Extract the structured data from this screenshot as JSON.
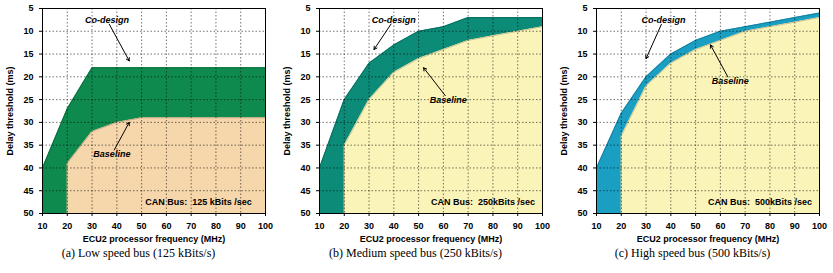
{
  "chart_data": [
    {
      "type": "area",
      "caption": "(a) Low speed bus (125 kBits/s)",
      "x_label": "ECU2 processor frequency (MHz)",
      "y_label": "Delay threshold (ms)",
      "x": [
        10,
        20,
        20,
        30,
        40,
        50,
        60,
        70,
        80,
        90,
        100
      ],
      "series": [
        {
          "name": "Co-design",
          "color": "#0e8a4e",
          "values": [
            40,
            27,
            27,
            18,
            18,
            18,
            18,
            18,
            18,
            18,
            18
          ]
        },
        {
          "name": "Baseline",
          "color": "#f6d6ab",
          "values": [
            50,
            50,
            39,
            32,
            30,
            29,
            29,
            29,
            29,
            29,
            29
          ]
        }
      ],
      "xlim": [
        10,
        100
      ],
      "xticks": [
        10,
        20,
        30,
        40,
        50,
        60,
        70,
        80,
        90,
        100
      ],
      "ylim": [
        50,
        5
      ],
      "yticks": [
        5,
        10,
        15,
        20,
        25,
        30,
        35,
        40,
        45,
        50
      ],
      "grid": true,
      "annotations": [
        {
          "text": "Co-design",
          "x": 36,
          "y": 7.5,
          "target": [
            45,
            16.5
          ]
        },
        {
          "text": "Baseline",
          "x": 38,
          "y": 37,
          "target": [
            45,
            30
          ]
        },
        {
          "text": "CAN Bus:  125 kBits /sec",
          "x": 73,
          "y": 47.5
        }
      ]
    },
    {
      "type": "area",
      "caption": "(b) Medium speed bus (250 kBits/s)",
      "x_label": "ECU2 processor frequency (MHz)",
      "y_label": "Delay threshold (ms)",
      "x": [
        10,
        20,
        20,
        30,
        40,
        50,
        60,
        70,
        80,
        90,
        100
      ],
      "series": [
        {
          "name": "Co-design",
          "color": "#0b8b78",
          "values": [
            40,
            25,
            25,
            17,
            13,
            10,
            9,
            7,
            7,
            7,
            7
          ]
        },
        {
          "name": "Baseline",
          "color": "#fbf4b8",
          "values": [
            50,
            50,
            35,
            25,
            19,
            16,
            14,
            12,
            11,
            10,
            9
          ]
        }
      ],
      "xlim": [
        10,
        100
      ],
      "xticks": [
        10,
        20,
        30,
        40,
        50,
        60,
        70,
        80,
        90,
        100
      ],
      "ylim": [
        50,
        5
      ],
      "yticks": [
        5,
        10,
        15,
        20,
        25,
        30,
        35,
        40,
        45,
        50
      ],
      "grid": true,
      "annotations": [
        {
          "text": "Co-design",
          "x": 40,
          "y": 7.5,
          "target": [
            32,
            14
          ]
        },
        {
          "text": "Baseline",
          "x": 62,
          "y": 25,
          "target": [
            52,
            18
          ]
        },
        {
          "text": "CAN Bus:  250kBits /sec",
          "x": 76,
          "y": 47.5
        }
      ]
    },
    {
      "type": "area",
      "caption": "(c) High speed bus (500 kBits/s)",
      "x_label": "ECU2 processor frequency (MHz)",
      "y_label": "Delay threshold (ms)",
      "x": [
        10,
        20,
        20,
        30,
        40,
        50,
        60,
        70,
        80,
        90,
        100
      ],
      "series": [
        {
          "name": "Co-design",
          "color": "#1a9fc2",
          "values": [
            40,
            28,
            28,
            20,
            15,
            12,
            10,
            9,
            8,
            7,
            6
          ]
        },
        {
          "name": "Baseline",
          "color": "#fbf4b8",
          "values": [
            50,
            50,
            33,
            22,
            17,
            14,
            12,
            10,
            9,
            8,
            7
          ]
        }
      ],
      "xlim": [
        10,
        100
      ],
      "xticks": [
        10,
        20,
        30,
        40,
        50,
        60,
        70,
        80,
        90,
        100
      ],
      "ylim": [
        50,
        5
      ],
      "yticks": [
        5,
        10,
        15,
        20,
        25,
        30,
        35,
        40,
        45,
        50
      ],
      "grid": true,
      "annotations": [
        {
          "text": "Co-design",
          "x": 37,
          "y": 7.5,
          "target": [
            30,
            16
          ]
        },
        {
          "text": "Baseline",
          "x": 64,
          "y": 21,
          "target": [
            56,
            13
          ]
        },
        {
          "text": "CAN Bus:  500kBits /sec",
          "x": 76,
          "y": 47.5
        }
      ]
    }
  ]
}
